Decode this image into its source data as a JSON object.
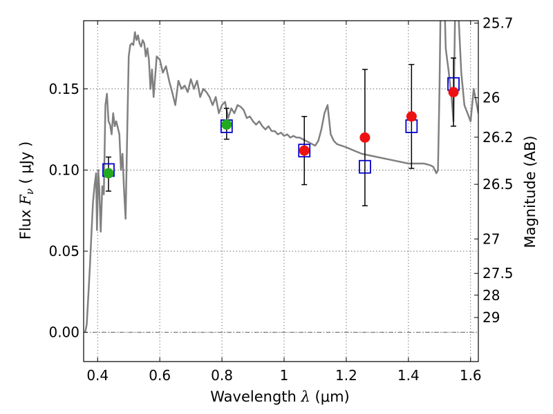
{
  "chart_data": {
    "type": "scatter",
    "title": "",
    "xlabel": {
      "prefix": "Wavelength",
      "symbol": "λ",
      "unit": "(μm)"
    },
    "ylabel": {
      "prefix": "Flux",
      "symbol": "F",
      "subscript": "ν",
      "unit": "( μJy )"
    },
    "y2label": "Magnitude (AB)",
    "xlim": [
      0.355,
      1.625
    ],
    "ylim": [
      -0.018,
      0.192
    ],
    "x_ticks": [
      0.4,
      0.6,
      0.8,
      1.0,
      1.2,
      1.4,
      1.6
    ],
    "x_tick_labels": [
      "0.4",
      "0.6",
      "0.8",
      "1",
      "1.2",
      "1.4",
      "1.6"
    ],
    "y_ticks": [
      0.0,
      0.05,
      0.1,
      0.15
    ],
    "y_tick_labels": [
      "0.00",
      "0.05",
      "0.10",
      "0.15"
    ],
    "y2_ticks": [
      {
        "label": "25.7",
        "mag": 25.7
      },
      {
        "label": "26",
        "mag": 26.0
      },
      {
        "label": "26.2",
        "mag": 26.2
      },
      {
        "label": "26.5",
        "mag": 26.5
      },
      {
        "label": "27",
        "mag": 27.0
      },
      {
        "label": "27.5",
        "mag": 27.5
      },
      {
        "label": "28",
        "mag": 28.0
      },
      {
        "label": "29",
        "mag": 29.0
      }
    ],
    "grid": true,
    "zero_line": true,
    "colors": {
      "model": "#808080",
      "green": "#22aa22",
      "red": "#ee1111",
      "squares": "#0000cc",
      "errorbars": "#000000"
    },
    "model_spectrum": {
      "x": [
        0.36,
        0.365,
        0.37,
        0.375,
        0.38,
        0.385,
        0.39,
        0.395,
        0.398,
        0.402,
        0.405,
        0.41,
        0.415,
        0.42,
        0.425,
        0.43,
        0.435,
        0.44,
        0.445,
        0.45,
        0.455,
        0.46,
        0.465,
        0.47,
        0.475,
        0.48,
        0.485,
        0.49,
        0.495,
        0.5,
        0.505,
        0.51,
        0.515,
        0.52,
        0.525,
        0.53,
        0.535,
        0.54,
        0.545,
        0.55,
        0.555,
        0.56,
        0.565,
        0.57,
        0.575,
        0.58,
        0.59,
        0.6,
        0.61,
        0.62,
        0.63,
        0.64,
        0.65,
        0.66,
        0.67,
        0.68,
        0.69,
        0.7,
        0.71,
        0.72,
        0.73,
        0.74,
        0.75,
        0.76,
        0.77,
        0.78,
        0.79,
        0.8,
        0.81,
        0.82,
        0.83,
        0.84,
        0.85,
        0.86,
        0.87,
        0.88,
        0.89,
        0.9,
        0.91,
        0.92,
        0.93,
        0.94,
        0.95,
        0.96,
        0.97,
        0.98,
        0.99,
        1.0,
        1.01,
        1.02,
        1.03,
        1.04,
        1.05,
        1.06,
        1.07,
        1.08,
        1.09,
        1.1,
        1.11,
        1.12,
        1.13,
        1.14,
        1.15,
        1.16,
        1.17,
        1.2,
        1.25,
        1.3,
        1.35,
        1.4,
        1.45,
        1.47,
        1.48,
        1.49,
        1.495,
        1.5,
        1.505,
        1.51,
        1.52,
        1.53,
        1.54,
        1.545,
        1.55,
        1.56,
        1.57,
        1.58,
        1.59,
        1.6,
        1.61,
        1.62,
        1.625
      ],
      "y": [
        0.0,
        0.005,
        0.022,
        0.04,
        0.06,
        0.08,
        0.09,
        0.098,
        0.063,
        0.1,
        0.09,
        0.062,
        0.09,
        0.085,
        0.14,
        0.147,
        0.13,
        0.128,
        0.122,
        0.135,
        0.127,
        0.13,
        0.126,
        0.122,
        0.1,
        0.11,
        0.088,
        0.07,
        0.12,
        0.17,
        0.177,
        0.178,
        0.177,
        0.185,
        0.18,
        0.183,
        0.178,
        0.176,
        0.18,
        0.178,
        0.17,
        0.175,
        0.168,
        0.15,
        0.162,
        0.145,
        0.17,
        0.168,
        0.16,
        0.164,
        0.155,
        0.148,
        0.14,
        0.155,
        0.15,
        0.152,
        0.148,
        0.156,
        0.15,
        0.155,
        0.145,
        0.15,
        0.148,
        0.145,
        0.14,
        0.145,
        0.135,
        0.14,
        0.142,
        0.132,
        0.138,
        0.135,
        0.14,
        0.139,
        0.137,
        0.132,
        0.133,
        0.13,
        0.128,
        0.13,
        0.127,
        0.125,
        0.127,
        0.124,
        0.124,
        0.122,
        0.123,
        0.121,
        0.122,
        0.12,
        0.121,
        0.12,
        0.12,
        0.119,
        0.118,
        0.117,
        0.116,
        0.115,
        0.118,
        0.125,
        0.135,
        0.14,
        0.122,
        0.118,
        0.116,
        0.114,
        0.11,
        0.108,
        0.106,
        0.104,
        0.104,
        0.103,
        0.102,
        0.098,
        0.1,
        0.15,
        0.22,
        0.25,
        0.175,
        0.16,
        0.142,
        0.13,
        0.195,
        0.2,
        0.16,
        0.14,
        0.135,
        0.13,
        0.15,
        0.14,
        0.135
      ]
    },
    "series": [
      {
        "marker": "circle-green",
        "x": [
          0.435,
          0.815
        ],
        "y": [
          0.098,
          0.128
        ]
      },
      {
        "marker": "circle-red",
        "x": [
          1.065,
          1.26,
          1.41,
          1.545
        ],
        "y": [
          0.112,
          0.12,
          0.133,
          0.148
        ]
      },
      {
        "marker": "square-open-blue",
        "x": [
          0.435,
          0.815,
          1.065,
          1.26,
          1.41,
          1.545
        ],
        "y": [
          0.1,
          0.127,
          0.112,
          0.102,
          0.127,
          0.153
        ],
        "yerr_low": [
          0.087,
          0.119,
          0.091,
          0.078,
          0.101,
          0.127
        ],
        "yerr_high": [
          0.108,
          0.138,
          0.133,
          0.162,
          0.165,
          0.169
        ]
      }
    ]
  }
}
